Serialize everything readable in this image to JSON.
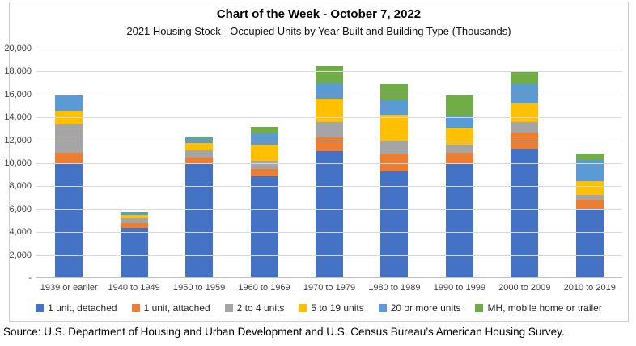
{
  "chart": {
    "title": "Chart of the Week - October 7, 2022",
    "subtitle": "2021 Housing Stock - Occupied Units by Year Built and Building Type (Thousands)"
  },
  "source_note": "Source: U.S. Department of Housing and Urban Development and U.S. Census Bureau’s American Housing Survey.",
  "chart_data": {
    "type": "bar",
    "stacked": true,
    "title": "Chart of the Week - October 7, 2022",
    "subtitle": "2021 Housing Stock - Occupied Units by Year Built and Building Type (Thousands)",
    "xlabel": "",
    "ylabel": "",
    "ylim": [
      0,
      20000
    ],
    "y_tick_interval": 2000,
    "y_tick_labels": [
      "20,000",
      "18,000",
      "16,000",
      "14,000",
      "12,000",
      "10,000",
      "8,000",
      "6,000",
      "4,000",
      "2,000",
      "-"
    ],
    "grid": true,
    "legend_position": "bottom",
    "categories": [
      "1939 or earlier",
      "1940 to 1949",
      "1950 to 1959",
      "1960 to 1969",
      "1970 to 1979",
      "1980 to 1989",
      "1990 to 1999",
      "2000 to 2009",
      "2010 to 2019"
    ],
    "series": [
      {
        "name": "1 unit, detached",
        "color": "#4472C4",
        "values": [
          9950,
          4350,
          9900,
          8900,
          11050,
          9300,
          9950,
          11300,
          6050
        ]
      },
      {
        "name": "1 unit, attached",
        "color": "#ED7D31",
        "values": [
          950,
          420,
          580,
          630,
          1170,
          1520,
          940,
          1410,
          800
        ]
      },
      {
        "name": "2 to 4 units",
        "color": "#A5A5A5",
        "values": [
          2450,
          450,
          680,
          700,
          1370,
          1180,
          700,
          870,
          370
        ]
      },
      {
        "name": "5 to 19 units",
        "color": "#FFC000",
        "values": [
          1250,
          280,
          630,
          1400,
          2050,
          2230,
          1530,
          1650,
          1250
        ]
      },
      {
        "name": "20 or more units",
        "color": "#5B9BD5",
        "values": [
          1300,
          220,
          370,
          1000,
          1340,
          1290,
          1060,
          1640,
          1810
        ]
      },
      {
        "name": "MH, mobile home or trailer",
        "color": "#70AD47",
        "values": [
          0,
          60,
          160,
          560,
          1450,
          1400,
          1710,
          1060,
          590
        ]
      }
    ]
  }
}
